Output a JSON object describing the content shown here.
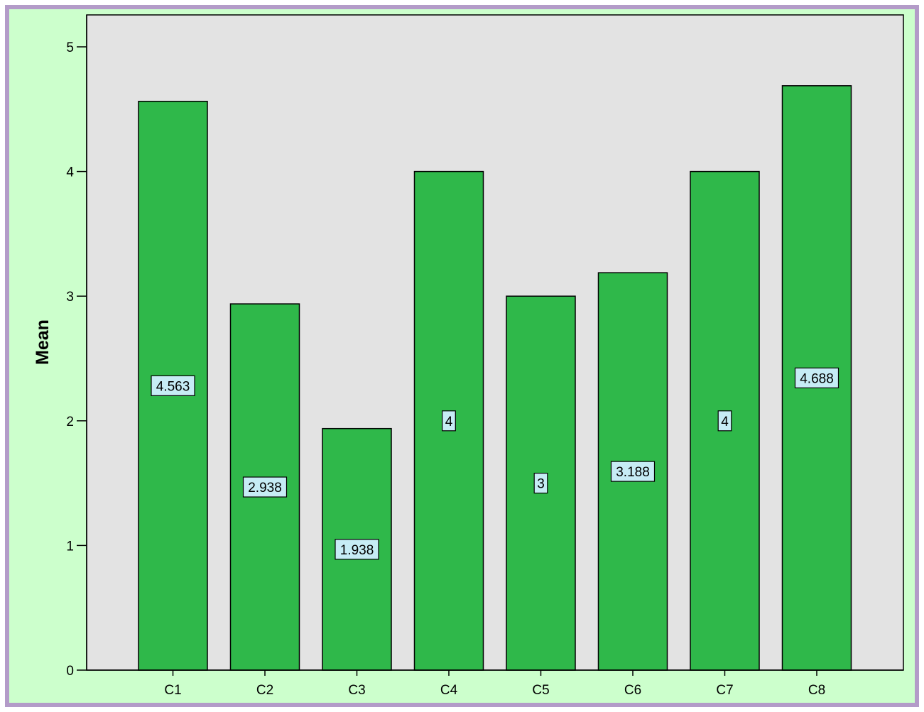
{
  "chart_data": {
    "type": "bar",
    "categories": [
      "C1",
      "C2",
      "C3",
      "C4",
      "C5",
      "C6",
      "C7",
      "C8"
    ],
    "values": [
      4.563,
      2.938,
      1.938,
      4,
      3,
      3.188,
      4,
      4.688
    ],
    "data_labels": [
      "4.563",
      "2.938",
      "1.938",
      "4",
      "3",
      "3.188",
      "4",
      "4.688"
    ],
    "title": "",
    "xlabel": "",
    "ylabel": "Mean",
    "ylim": [
      0,
      5.25
    ],
    "yticks": [
      "0",
      "1",
      "2",
      "3",
      "4",
      "5"
    ],
    "grid": false,
    "legend": "none"
  },
  "colors": {
    "frame_border": "#b39bc8",
    "outer_background": "#ccffcc",
    "plot_background": "#e3e3e3",
    "bar_fill": "#2fb84a",
    "bar_stroke": "#000000",
    "label_fill": "#c6ecf5"
  }
}
